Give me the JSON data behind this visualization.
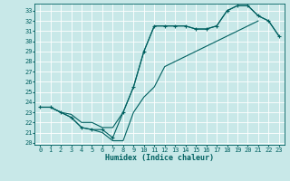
{
  "xlabel": "Humidex (Indice chaleur)",
  "x_values": [
    0,
    1,
    2,
    3,
    4,
    5,
    6,
    7,
    8,
    9,
    10,
    11,
    12,
    13,
    14,
    15,
    16,
    17,
    18,
    19,
    20,
    21,
    22,
    23
  ],
  "line1_y": [
    23.5,
    23.5,
    23.0,
    22.5,
    21.5,
    21.3,
    21.3,
    20.5,
    23.0,
    25.5,
    29.0,
    31.5,
    31.5,
    31.5,
    31.5,
    31.2,
    31.2,
    31.5,
    33.0,
    33.5,
    33.5,
    32.5,
    32.0,
    30.5
  ],
  "line2_y": [
    23.5,
    23.5,
    23.0,
    22.5,
    21.5,
    21.3,
    21.0,
    20.2,
    20.2,
    23.0,
    24.5,
    25.5,
    27.5,
    28.0,
    28.5,
    29.0,
    29.5,
    30.0,
    30.5,
    31.0,
    31.5,
    32.0,
    null,
    null
  ],
  "line3_y": [
    23.5,
    23.5,
    23.0,
    22.8,
    22.0,
    22.0,
    21.5,
    21.5,
    23.0,
    25.5,
    29.0,
    31.5,
    31.5,
    31.5,
    31.5,
    31.2,
    31.2,
    31.5,
    33.0,
    33.5,
    33.5,
    32.5,
    32.0,
    30.5
  ],
  "bg_color": "#c8e8e8",
  "line_color": "#006060",
  "grid_color": "#ffffff",
  "ylim": [
    19.8,
    33.7
  ],
  "xlim": [
    -0.5,
    23.5
  ],
  "yticks": [
    20,
    21,
    22,
    23,
    24,
    25,
    26,
    27,
    28,
    29,
    30,
    31,
    32,
    33
  ],
  "xticks": [
    0,
    1,
    2,
    3,
    4,
    5,
    6,
    7,
    8,
    9,
    10,
    11,
    12,
    13,
    14,
    15,
    16,
    17,
    18,
    19,
    20,
    21,
    22,
    23
  ]
}
